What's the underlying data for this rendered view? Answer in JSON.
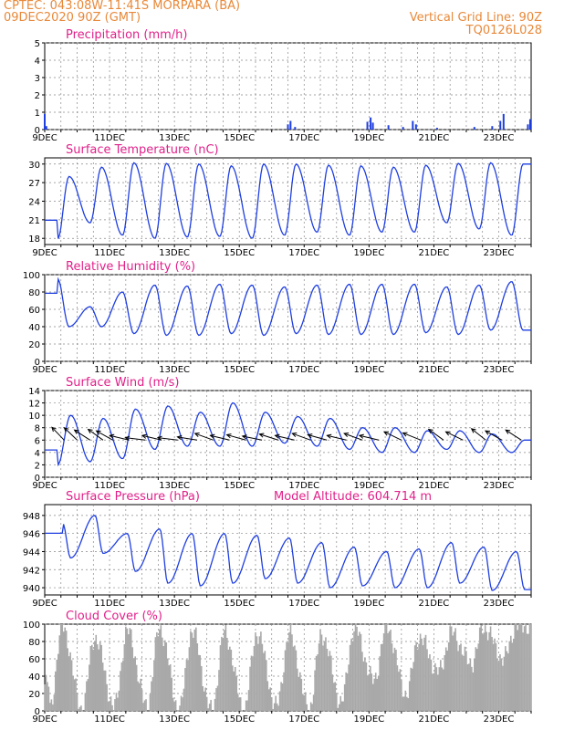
{
  "header": {
    "line1": "CPTEC:   043:08W-11:41S   MORPARA (BA)",
    "line2": "09DEC2020 90Z (GMT)",
    "grid_note": "Vertical Grid Line: 90Z",
    "run_code": "TQ0126L028"
  },
  "colors": {
    "title": "#e0218a",
    "header": "#e8893a",
    "series": "#1f3fe0",
    "cloud": "#a9a9a9",
    "wind_arrow": "#000000"
  },
  "chart_data": [
    {
      "type": "bar",
      "title": "Precipitation (mm/h)",
      "x_ticks": [
        "9DEC",
        "11DEC",
        "13DEC",
        "15DEC",
        "17DEC",
        "19DEC",
        "21DEC",
        "23DEC"
      ],
      "x_range_days": [
        9,
        24
      ],
      "ylim": [
        0,
        5
      ],
      "y_ticks": [
        0,
        1,
        2,
        3,
        4,
        5
      ],
      "grid": true,
      "values": [
        [
          9.0,
          0.9
        ],
        [
          9.05,
          0.2
        ],
        [
          16.5,
          0.3
        ],
        [
          16.58,
          0.5
        ],
        [
          16.72,
          0.15
        ],
        [
          18.95,
          0.45
        ],
        [
          19.05,
          0.7
        ],
        [
          19.12,
          0.4
        ],
        [
          19.6,
          0.25
        ],
        [
          20.05,
          0.15
        ],
        [
          20.35,
          0.5
        ],
        [
          20.45,
          0.3
        ],
        [
          21.1,
          0.1
        ],
        [
          22.25,
          0.15
        ],
        [
          22.8,
          0.2
        ],
        [
          23.05,
          0.5
        ],
        [
          23.15,
          0.9
        ],
        [
          23.9,
          0.3
        ],
        [
          23.97,
          0.6
        ]
      ]
    },
    {
      "type": "line",
      "title": "Surface Temperature (nC)",
      "x_ticks": [
        "9DEC",
        "11DEC",
        "13DEC",
        "15DEC",
        "17DEC",
        "19DEC",
        "21DEC",
        "23DEC"
      ],
      "ylim": [
        17,
        31
      ],
      "y_ticks": [
        18,
        21,
        24,
        27,
        30
      ],
      "grid": true,
      "daily_max": [
        28,
        29.5,
        30.2,
        30.1,
        30,
        29.7,
        30,
        30,
        29.8,
        29.7,
        29.5,
        29.8,
        30.1,
        30.2,
        30
      ],
      "daily_min": [
        17.9,
        20.5,
        18.5,
        18,
        18.2,
        18.3,
        18,
        18.5,
        19,
        18.5,
        19,
        19,
        20.5,
        19.5,
        18.5
      ]
    },
    {
      "type": "line",
      "title": "Relative Humidity (%)",
      "x_ticks": [
        "9DEC",
        "11DEC",
        "13DEC",
        "15DEC",
        "17DEC",
        "19DEC",
        "21DEC",
        "23DEC"
      ],
      "ylim": [
        0,
        100
      ],
      "y_ticks": [
        0,
        20,
        40,
        60,
        80,
        100
      ],
      "grid": true,
      "daily_max": [
        95,
        63,
        80,
        88,
        87,
        89,
        88,
        86,
        88,
        89,
        89,
        89,
        86,
        88,
        92
      ],
      "daily_min": [
        40,
        40,
        32,
        30,
        30,
        32,
        30,
        32,
        31,
        31,
        31,
        33,
        31,
        36,
        36
      ]
    },
    {
      "type": "line",
      "title": "Surface Wind (m/s)",
      "x_ticks": [
        "9DEC",
        "11DEC",
        "13DEC",
        "15DEC",
        "17DEC",
        "19DEC",
        "21DEC",
        "23DEC"
      ],
      "ylim": [
        0,
        14
      ],
      "y_ticks": [
        0,
        2,
        4,
        6,
        8,
        10,
        12,
        14
      ],
      "grid": true,
      "daily_max": [
        10,
        9.5,
        11,
        11.5,
        10.5,
        12,
        10.5,
        9.8,
        9.5,
        8,
        8,
        7.5,
        7.5,
        7,
        6
      ],
      "daily_min": [
        2,
        2.5,
        3,
        4.5,
        5,
        5,
        5,
        5.5,
        5,
        4.5,
        4,
        4,
        4.5,
        4,
        4
      ],
      "wind_arrows": [
        [
          9.6,
          -1.0,
          1.3
        ],
        [
          10.0,
          -1.0,
          1.2
        ],
        [
          10.4,
          -1.0,
          0.8
        ],
        [
          10.8,
          -1.0,
          0.9
        ],
        [
          11.1,
          -1.0,
          0.7
        ],
        [
          11.6,
          -1.0,
          0.3
        ],
        [
          12.1,
          -1.0,
          0.15
        ],
        [
          12.6,
          -1.0,
          0.3
        ],
        [
          13.1,
          -1.0,
          0.15
        ],
        [
          13.7,
          -1.0,
          0.2
        ],
        [
          14.2,
          -1.0,
          0.45
        ],
        [
          14.7,
          -1.0,
          0.3
        ],
        [
          15.2,
          -1.0,
          0.35
        ],
        [
          15.7,
          -1.0,
          0.25
        ],
        [
          16.2,
          -1.0,
          0.4
        ],
        [
          16.7,
          -1.0,
          0.3
        ],
        [
          17.2,
          -1.0,
          0.45
        ],
        [
          17.7,
          -1.0,
          0.35
        ],
        [
          18.3,
          -1.0,
          0.3
        ],
        [
          18.8,
          -1.0,
          0.45
        ],
        [
          19.3,
          -1.0,
          0.3
        ],
        [
          20.0,
          -1.0,
          0.6
        ],
        [
          20.6,
          -1.0,
          0.5
        ],
        [
          21.3,
          -1.0,
          0.9
        ],
        [
          21.9,
          -1.0,
          0.6
        ],
        [
          22.6,
          -1.0,
          1.0
        ],
        [
          23.1,
          -1.0,
          0.7
        ],
        [
          23.7,
          -1.0,
          0.8
        ]
      ]
    },
    {
      "type": "line",
      "title": "Surface Pressure (hPa)",
      "annotation": "Model Altitude: 604.714 m",
      "x_ticks": [
        "9DEC",
        "11DEC",
        "13DEC",
        "15DEC",
        "17DEC",
        "19DEC",
        "21DEC",
        "23DEC"
      ],
      "ylim": [
        939.2,
        949.2
      ],
      "y_ticks": [
        940,
        942,
        944,
        946,
        948
      ],
      "grid": true,
      "daily_max": [
        947.2,
        948,
        946,
        946.5,
        946,
        946,
        945.8,
        945.5,
        945,
        944.5,
        944,
        944.3,
        945,
        944.5,
        944
      ],
      "daily_min": [
        943.3,
        943.8,
        941.8,
        940.5,
        940.2,
        940.5,
        941,
        940.5,
        940,
        940.2,
        940,
        940,
        940.5,
        939.7,
        939.8
      ]
    },
    {
      "type": "area",
      "title": "Cloud Cover (%)",
      "x_ticks": [
        "9DEC",
        "11DEC",
        "13DEC",
        "15DEC",
        "17DEC",
        "19DEC",
        "21DEC",
        "23DEC"
      ],
      "ylim": [
        0,
        100
      ],
      "y_ticks": [
        0,
        20,
        40,
        60,
        80,
        100
      ],
      "grid": true,
      "daily_max": [
        97,
        85,
        92,
        95,
        92,
        90,
        90,
        88,
        88,
        95,
        97,
        85,
        90,
        96,
        98
      ],
      "daily_min": [
        2,
        3,
        5,
        6,
        2,
        0,
        2,
        5,
        3,
        10,
        35,
        20,
        45,
        55,
        60
      ]
    }
  ]
}
